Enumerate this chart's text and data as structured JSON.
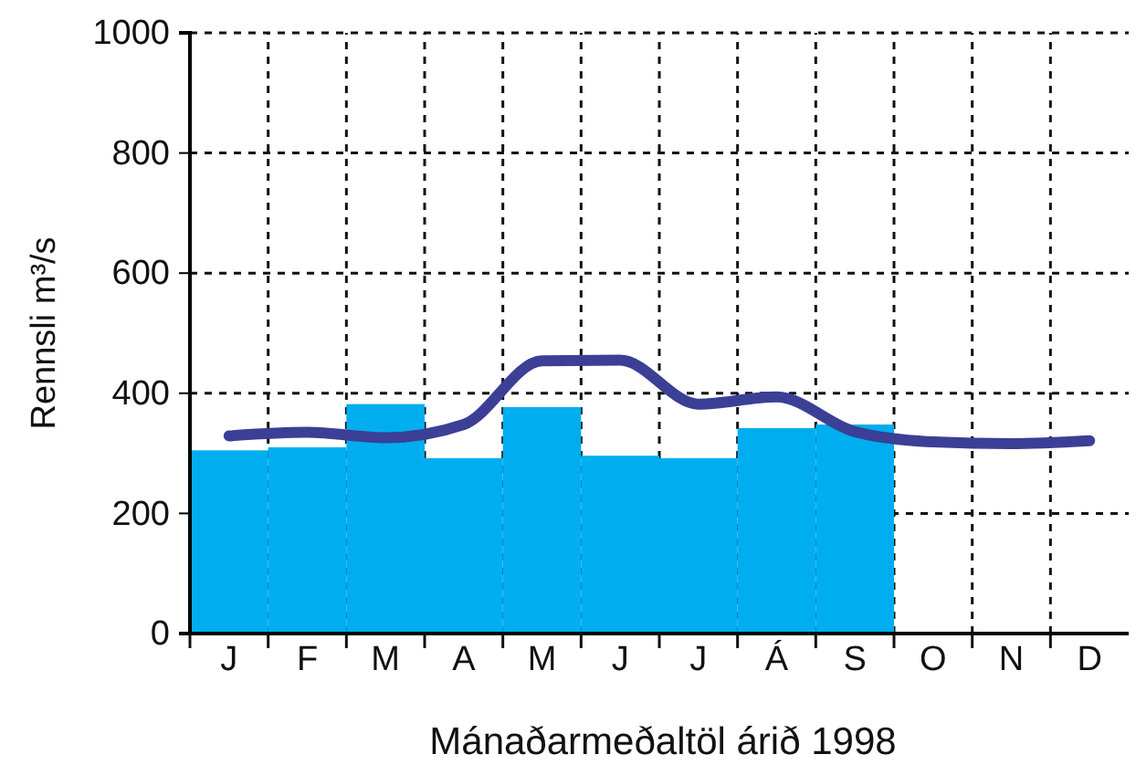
{
  "chart_data": {
    "type": "bar",
    "xlabel": "Mánaðarmeðaltöl árið 1998",
    "ylabel": "Rennsli  m³/s",
    "categories": [
      "J",
      "F",
      "M",
      "A",
      "M",
      "J",
      "J",
      "Á",
      "S",
      "O",
      "N",
      "D"
    ],
    "ylim": [
      0,
      1000
    ],
    "yticks": [
      0,
      200,
      400,
      600,
      800,
      1000
    ],
    "grid": true,
    "series": [
      {
        "color": "#00aeef",
        "values": [
          305,
          310,
          382,
          292,
          377,
          296,
          292,
          342,
          348,
          null,
          null,
          null
        ]
      },
      {
        "type": "line",
        "color": "#3b3f96",
        "values": [
          329,
          335,
          326,
          348,
          454,
          455,
          382,
          394,
          336,
          319,
          316,
          321
        ]
      }
    ]
  }
}
